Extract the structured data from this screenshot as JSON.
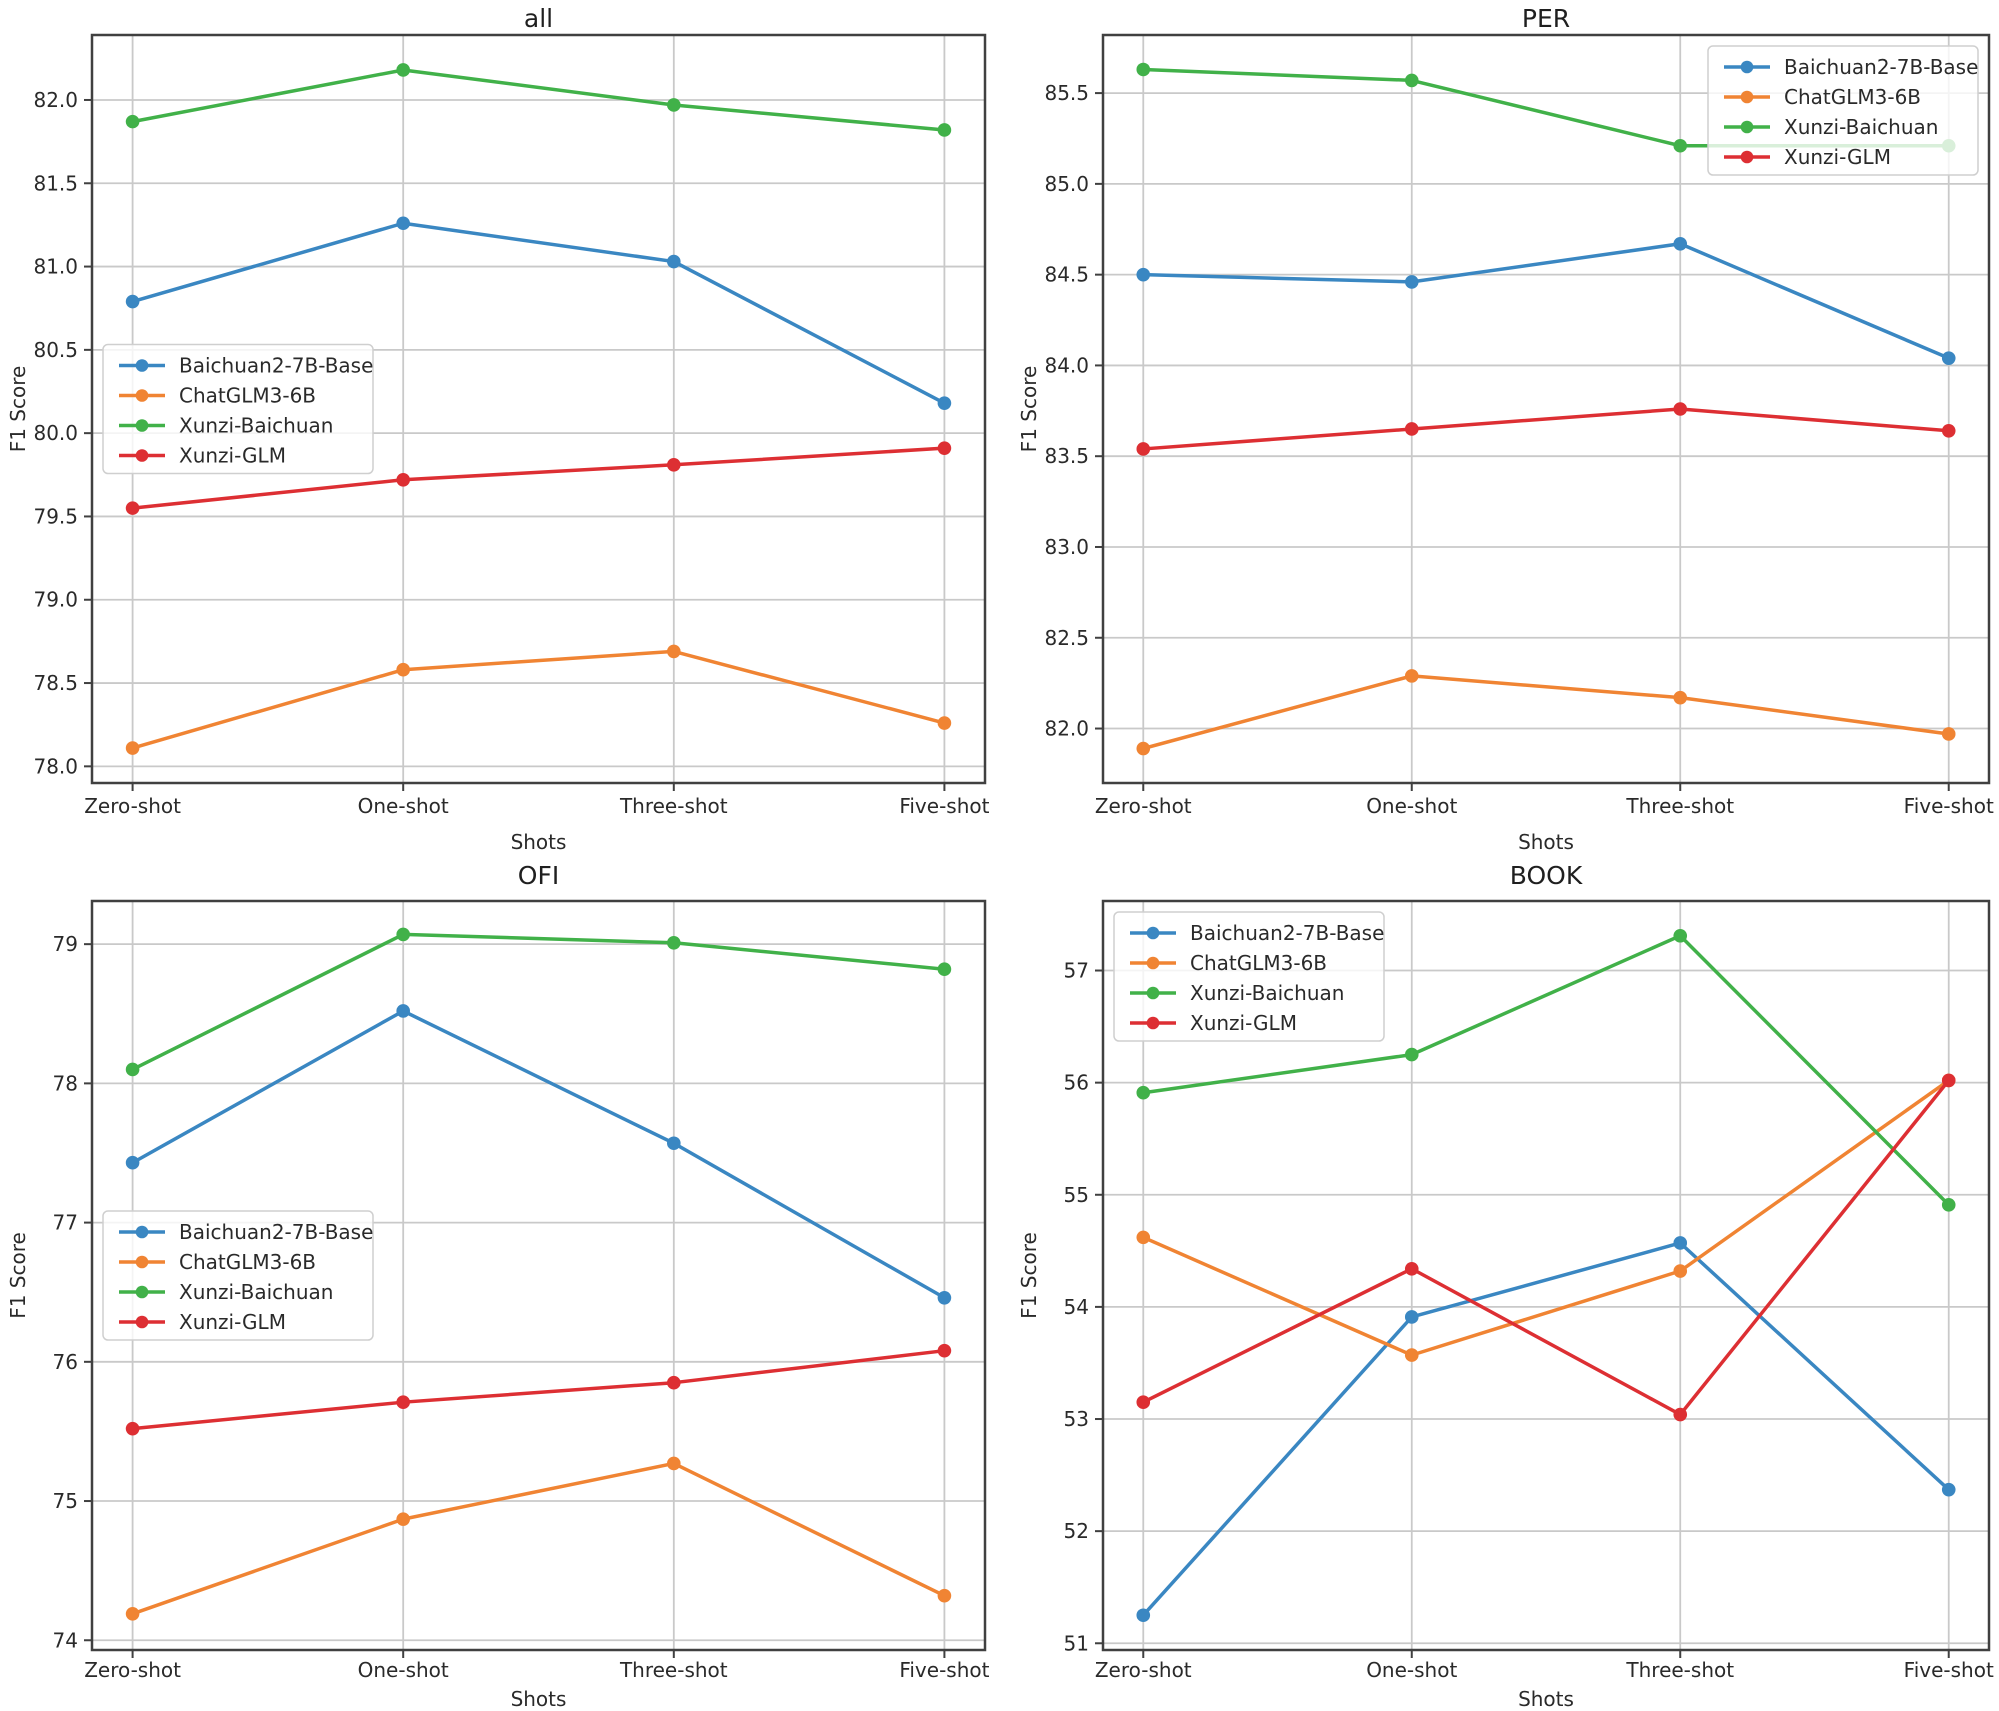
{
  "figure": {
    "background": "#ffffff",
    "text_color": "#2a2a2a",
    "grid_color": "#c9c9c9",
    "spine_color": "#404040",
    "legend_border_color": "#cfcfcf",
    "series_colors": {
      "Baichuan2-7B-Base": "#3a87c2",
      "ChatGLM3-6B": "#f08433",
      "Xunzi-Baichuan": "#41b149",
      "Xunzi-GLM": "#dd2f33"
    }
  },
  "chart_data": [
    {
      "type": "line",
      "title": "all",
      "xlabel": "Shots",
      "ylabel": "F1 Score",
      "categories": [
        "Zero-shot",
        "One-shot",
        "Three-shot",
        "Five-shot"
      ],
      "ylim": [
        77.9,
        82.39
      ],
      "yticks": [
        78.0,
        78.5,
        79.0,
        79.5,
        80.0,
        80.5,
        81.0,
        81.5,
        82.0
      ],
      "ytick_labels": [
        "78.0",
        "78.5",
        "79.0",
        "79.5",
        "80.0",
        "80.5",
        "81.0",
        "81.5",
        "82.0"
      ],
      "grid": true,
      "legend_position": "center-left",
      "series": [
        {
          "name": "Baichuan2-7B-Base",
          "values": [
            80.79,
            81.26,
            81.03,
            80.18
          ]
        },
        {
          "name": "ChatGLM3-6B",
          "values": [
            78.11,
            78.58,
            78.69,
            78.26
          ]
        },
        {
          "name": "Xunzi-Baichuan",
          "values": [
            81.87,
            82.18,
            81.97,
            81.82
          ]
        },
        {
          "name": "Xunzi-GLM",
          "values": [
            79.55,
            79.72,
            79.81,
            79.91
          ]
        }
      ]
    },
    {
      "type": "line",
      "title": "PER",
      "xlabel": "Shots",
      "ylabel": "F1 Score",
      "categories": [
        "Zero-shot",
        "One-shot",
        "Three-shot",
        "Five-shot"
      ],
      "ylim": [
        81.7,
        85.82
      ],
      "yticks": [
        82.0,
        82.5,
        83.0,
        83.5,
        84.0,
        84.5,
        85.0,
        85.5
      ],
      "ytick_labels": [
        "82.0",
        "82.5",
        "83.0",
        "83.5",
        "84.0",
        "84.5",
        "85.0",
        "85.5"
      ],
      "grid": true,
      "legend_position": "upper-right",
      "series": [
        {
          "name": "Baichuan2-7B-Base",
          "values": [
            84.5,
            84.46,
            84.67,
            84.04
          ]
        },
        {
          "name": "ChatGLM3-6B",
          "values": [
            81.89,
            82.29,
            82.17,
            81.97
          ]
        },
        {
          "name": "Xunzi-Baichuan",
          "values": [
            85.63,
            85.57,
            85.21,
            85.21
          ]
        },
        {
          "name": "Xunzi-GLM",
          "values": [
            83.54,
            83.65,
            83.76,
            83.64
          ]
        }
      ]
    },
    {
      "type": "line",
      "title": "OFI",
      "xlabel": "Shots",
      "ylabel": "F1 Score",
      "categories": [
        "Zero-shot",
        "One-shot",
        "Three-shot",
        "Five-shot"
      ],
      "ylim": [
        73.93,
        79.31
      ],
      "yticks": [
        74,
        75,
        76,
        77,
        78,
        79
      ],
      "ytick_labels": [
        "74",
        "75",
        "76",
        "77",
        "78",
        "79"
      ],
      "grid": true,
      "legend_position": "center-left",
      "series": [
        {
          "name": "Baichuan2-7B-Base",
          "values": [
            77.43,
            78.52,
            77.57,
            76.46
          ]
        },
        {
          "name": "ChatGLM3-6B",
          "values": [
            74.19,
            74.87,
            75.27,
            74.32
          ]
        },
        {
          "name": "Xunzi-Baichuan",
          "values": [
            78.1,
            79.07,
            79.01,
            78.82
          ]
        },
        {
          "name": "Xunzi-GLM",
          "values": [
            75.52,
            75.71,
            75.85,
            76.08
          ]
        }
      ]
    },
    {
      "type": "line",
      "title": "BOOK",
      "xlabel": "Shots",
      "ylabel": "F1 Score",
      "categories": [
        "Zero-shot",
        "One-shot",
        "Three-shot",
        "Five-shot"
      ],
      "ylim": [
        50.94,
        57.62
      ],
      "yticks": [
        51,
        52,
        53,
        54,
        55,
        56,
        57
      ],
      "ytick_labels": [
        "51",
        "52",
        "53",
        "54",
        "55",
        "56",
        "57"
      ],
      "grid": true,
      "legend_position": "upper-left",
      "series": [
        {
          "name": "Baichuan2-7B-Base",
          "values": [
            51.25,
            53.91,
            54.57,
            52.37
          ]
        },
        {
          "name": "ChatGLM3-6B",
          "values": [
            54.62,
            53.57,
            54.32,
            56.02
          ]
        },
        {
          "name": "Xunzi-Baichuan",
          "values": [
            55.91,
            56.25,
            57.31,
            54.91
          ]
        },
        {
          "name": "Xunzi-GLM",
          "values": [
            53.15,
            54.34,
            53.04,
            56.02
          ]
        }
      ]
    }
  ]
}
